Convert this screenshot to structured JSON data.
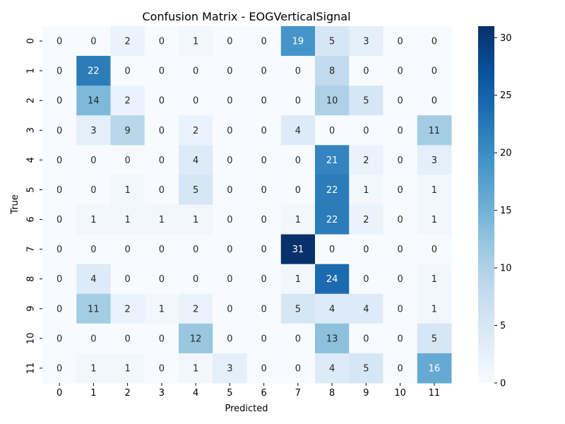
{
  "chart_data": {
    "type": "heatmap",
    "title": "Confusion Matrix - EOGVerticalSignal",
    "xlabel": "Predicted",
    "ylabel": "True",
    "x_categories": [
      "0",
      "1",
      "2",
      "3",
      "4",
      "5",
      "6",
      "7",
      "8",
      "9",
      "10",
      "11"
    ],
    "y_categories": [
      "0",
      "1",
      "2",
      "3",
      "4",
      "5",
      "6",
      "7",
      "8",
      "9",
      "10",
      "11"
    ],
    "values": [
      [
        0,
        0,
        2,
        0,
        1,
        0,
        0,
        19,
        5,
        3,
        0,
        0
      ],
      [
        0,
        22,
        0,
        0,
        0,
        0,
        0,
        0,
        8,
        0,
        0,
        0
      ],
      [
        0,
        14,
        2,
        0,
        0,
        0,
        0,
        0,
        10,
        5,
        0,
        0
      ],
      [
        0,
        3,
        9,
        0,
        2,
        0,
        0,
        4,
        0,
        0,
        0,
        11
      ],
      [
        0,
        0,
        0,
        0,
        4,
        0,
        0,
        0,
        21,
        2,
        0,
        3
      ],
      [
        0,
        0,
        1,
        0,
        5,
        0,
        0,
        0,
        22,
        1,
        0,
        1
      ],
      [
        0,
        1,
        1,
        1,
        1,
        0,
        0,
        1,
        22,
        2,
        0,
        1
      ],
      [
        0,
        0,
        0,
        0,
        0,
        0,
        0,
        31,
        0,
        0,
        0,
        0
      ],
      [
        0,
        4,
        0,
        0,
        0,
        0,
        0,
        1,
        24,
        0,
        0,
        1
      ],
      [
        0,
        11,
        2,
        1,
        2,
        0,
        0,
        5,
        4,
        4,
        0,
        1
      ],
      [
        0,
        0,
        0,
        0,
        12,
        0,
        0,
        0,
        13,
        0,
        0,
        5
      ],
      [
        0,
        1,
        1,
        0,
        1,
        3,
        0,
        0,
        4,
        5,
        0,
        16
      ]
    ],
    "colormap": "Blues",
    "vmin": 0,
    "vmax": 31,
    "colorbar_ticks": [
      0,
      5,
      10,
      15,
      20,
      25,
      30
    ],
    "colorbar_tick_labels": [
      "0",
      "5",
      "10",
      "15",
      "20",
      "25",
      "30"
    ],
    "annotations": true
  }
}
